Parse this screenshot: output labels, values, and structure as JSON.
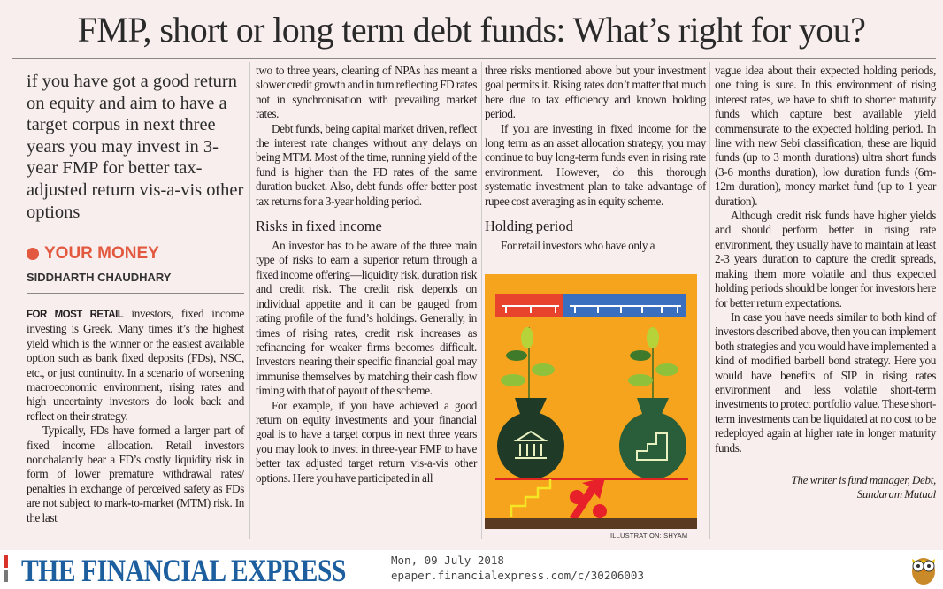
{
  "title": "FMP, short or long term debt funds: What’s right for you?",
  "deck": "if you have got a good return on equity and aim to have a target corpus in next three years you may invest in 3-year FMP for better tax-adjusted return vis-a-vis other options",
  "section": "YOUR MONEY",
  "author": "SIDDHARTH CHAUDHARY",
  "col1": {
    "lead": "FOR MOST RETAIL",
    "paragraphs": [
      "investors, fixed income investing is Greek. Many times it’s the highest yield which is the winner or the easiest available option such as bank fixed deposits (FDs), NSC, etc., or just continuity. In a scenario of worsening macroeconomic environment, rising rates and high uncertainty investors do look back and reflect on their strategy.",
      "Typically, FDs have formed a larger part of fixed income allocation. Retail investors nonchalantly bear a FD’s costly liquidity risk in form of lower premature withdrawal rates/ penalties in exchange of perceived safety as FDs are not subject to mark-to-market (MTM) risk. In the last"
    ]
  },
  "col2": {
    "paragraphs_a": [
      "two to three years, cleaning of NPAs has meant a slower credit growth and in turn reflecting FD rates not in synchronisation with prevailing market rates.",
      "Debt funds, being capital market driven, reflect the interest rate changes without any delays on being MTM. Most of the time, running yield of the fund is higher than the FD rates of the same duration bucket. Also, debt funds offer better post tax returns for a 3-year holding period."
    ],
    "heading": "Risks in fixed income",
    "paragraphs_b": [
      "An investor has to be aware of the three main type of risks to earn a superior return through a fixed income offering—liquidity risk, duration risk and credit risk. The credit risk depends on individual appetite and it can be gauged from rating profile of the fund’s holdings. Generally, in times of rising rates, credit risk increases as refinancing for weaker firms becomes difficult. Investors nearing their specific financial goal may immunise themselves by matching their cash flow timing with that of payout of the scheme.",
      "For example, if you have achieved a good return on equity investments and your financial goal is to have a target corpus in next three years you may look to invest in three-year FMP to have better tax adjusted target return vis-a-vis other options. Here you have participated in all"
    ]
  },
  "col3": {
    "paragraphs_a": [
      "three risks mentioned above but your investment goal permits it. Rising rates don’t matter that much here due to tax efficiency and known holding period.",
      "If you are investing in fixed income for the long term as an asset allocation strategy, you may continue to buy long-term funds even in rising rate environment. However, do this thorough systematic investment plan to take advantage of rupee cost averaging as in equity scheme."
    ],
    "heading": "Holding period",
    "paragraphs_b": [
      "For retail investors who have only a"
    ]
  },
  "col4": {
    "paragraphs": [
      "vague idea about their expected holding periods, one thing is sure. In this environment of rising interest rates, we have to shift to shorter maturity funds which capture best available yield commensurate to the expected holding period. In line with new Sebi classification, these are liquid funds (up to 3 month durations) ultra short funds (3-6 months duration), low duration funds (6m-12m duration), money market fund (up to 1 year duration).",
      "Although credit risk funds have higher yields and should perform better in rising rate environment, they usually have to maintain at least 2-3 years duration to capture the credit spreads, making them more volatile and thus expected holding periods should be longer for investors here for better return expectations.",
      "In case you have needs similar to both kind of investors described above, then you can implement both strategies and you would have implemented a kind of modified barbell bond strategy. Here you would have benefits of SIP in rising rates environment and less volatile short-term investments to protect portfolio value. These short-term investments can be liquidated at no cost to be redeployed again at higher rate in longer maturity funds."
    ],
    "byline1": "The writer is fund manager, Debt,",
    "byline2": "Sundaram Mutual"
  },
  "illustration_credit": "ILLUSTRATION: SHYAM",
  "footer": {
    "logo": "THE FINANCIAL EXPRESS",
    "date": "Mon, 09 July 2018",
    "url": "epaper.financialexpress.com/c/30206003"
  },
  "colors": {
    "accent": "#e2593f",
    "logo": "#1d5f9e",
    "background": "#f9eeee",
    "illustration_bg": "#f5a623"
  }
}
